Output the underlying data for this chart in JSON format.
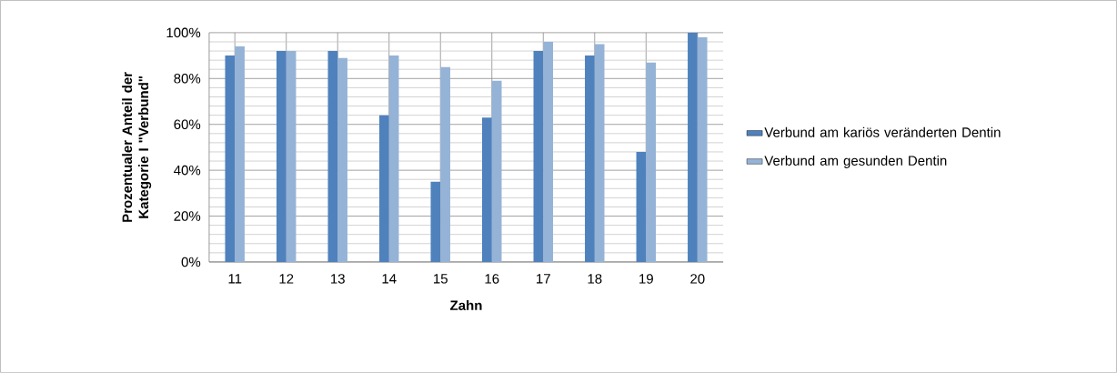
{
  "chart_data": {
    "type": "bar",
    "xlabel": "Zahn",
    "ylabel": "Prozentualer Anteil der Kategorie I \"Verbund\"",
    "categories": [
      "11",
      "12",
      "13",
      "14",
      "15",
      "16",
      "17",
      "18",
      "19",
      "20"
    ],
    "series": [
      {
        "name": "Verbund am kariös veränderten Dentin",
        "color": "#4f81bd",
        "values": [
          90,
          92,
          92,
          64,
          35,
          63,
          92,
          90,
          48,
          100
        ]
      },
      {
        "name": "Verbund am gesunden Dentin",
        "color": "#95b3d7",
        "values": [
          94,
          92,
          89,
          90,
          85,
          79,
          96,
          95,
          87,
          98
        ]
      }
    ],
    "ylim": [
      0,
      100
    ],
    "yticks": [
      {
        "value": 0,
        "label": "0%"
      },
      {
        "value": 4,
        "label": null
      },
      {
        "value": 8,
        "label": null
      },
      {
        "value": 12,
        "label": null
      },
      {
        "value": 16,
        "label": null
      },
      {
        "value": 20,
        "label": "20%"
      },
      {
        "value": 24,
        "label": null
      },
      {
        "value": 28,
        "label": null
      },
      {
        "value": 32,
        "label": null
      },
      {
        "value": 36,
        "label": null
      },
      {
        "value": 40,
        "label": "40%"
      },
      {
        "value": 44,
        "label": null
      },
      {
        "value": 48,
        "label": null
      },
      {
        "value": 52,
        "label": null
      },
      {
        "value": 56,
        "label": null
      },
      {
        "value": 60,
        "label": "60%"
      },
      {
        "value": 64,
        "label": null
      },
      {
        "value": 68,
        "label": null
      },
      {
        "value": 72,
        "label": null
      },
      {
        "value": 76,
        "label": null
      },
      {
        "value": 80,
        "label": "80%"
      },
      {
        "value": 84,
        "label": null
      },
      {
        "value": 88,
        "label": null
      },
      {
        "value": 92,
        "label": null
      },
      {
        "value": 96,
        "label": null
      },
      {
        "value": 100,
        "label": "100%"
      }
    ],
    "grid": true,
    "legend": "right"
  }
}
